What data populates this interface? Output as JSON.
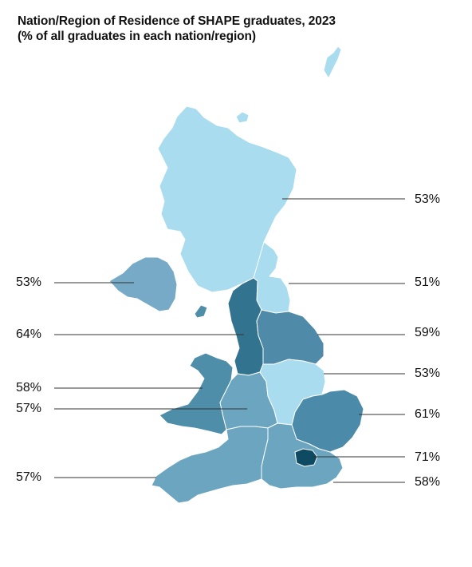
{
  "title": {
    "line1": "Nation/Region of Residence of SHAPE graduates, 2023",
    "line2": "(% of all graduates in each nation/region)"
  },
  "colors": {
    "shade_51_53": "#a9dcee",
    "shade_53_ni": "#77aac6",
    "shade_57": "#6ba5c0",
    "shade_58": "#4e8ea9",
    "shade_59": "#4f8aa8",
    "shade_61": "#4b8aa8",
    "shade_64": "#32738f",
    "shade_71": "#0e4a62",
    "border": "#ffffff",
    "leader_line": "#333333"
  },
  "map_data": {
    "regions": [
      {
        "key": "scotland",
        "value": "53%"
      },
      {
        "key": "north_east",
        "value": "51%"
      },
      {
        "key": "yorkshire",
        "value": "59%"
      },
      {
        "key": "east_midlands",
        "value": "53%"
      },
      {
        "key": "east_of_england",
        "value": "61%"
      },
      {
        "key": "london",
        "value": "71%"
      },
      {
        "key": "south_east",
        "value": "58%"
      },
      {
        "key": "northern_ireland",
        "value": "53%"
      },
      {
        "key": "north_west",
        "value": "64%"
      },
      {
        "key": "wales",
        "value": "58%"
      },
      {
        "key": "west_midlands",
        "value": "57%"
      },
      {
        "key": "south_west",
        "value": "57%"
      }
    ]
  }
}
